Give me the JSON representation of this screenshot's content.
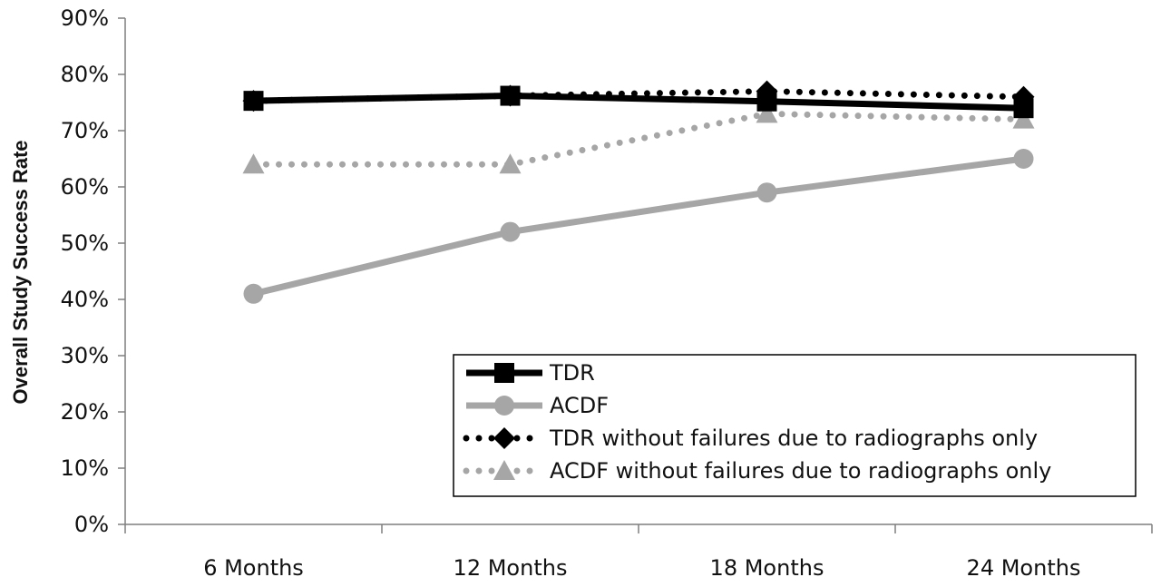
{
  "chart_data": {
    "type": "line",
    "title": "",
    "xlabel": "",
    "ylabel": "Overall Study Success Rate",
    "categories": [
      "6 Months",
      "12 Months",
      "18 Months",
      "24 Months"
    ],
    "ylim": [
      0,
      90
    ],
    "yticks": [
      "0%",
      "10%",
      "20%",
      "30%",
      "40%",
      "50%",
      "60%",
      "70%",
      "80%",
      "90%"
    ],
    "grid": false,
    "legend_position": "bottom-right",
    "series": [
      {
        "name": "TDR",
        "values": [
          75.3,
          76.2,
          75.2,
          74.0
        ],
        "color": "#000000",
        "style": "solid",
        "marker": "square"
      },
      {
        "name": "ACDF",
        "values": [
          41.0,
          52.0,
          59.0,
          65.0
        ],
        "color": "#a6a6a6",
        "style": "solid",
        "marker": "circle"
      },
      {
        "name": "TDR without failures due to radiographs only",
        "values": [
          75.3,
          76.2,
          77.0,
          76.0
        ],
        "color": "#000000",
        "style": "dotted",
        "marker": "diamond"
      },
      {
        "name": "ACDF without failures due to radiographs only",
        "values": [
          64.0,
          64.0,
          73.0,
          72.0
        ],
        "color": "#a6a6a6",
        "style": "dotted",
        "marker": "triangle"
      }
    ]
  }
}
